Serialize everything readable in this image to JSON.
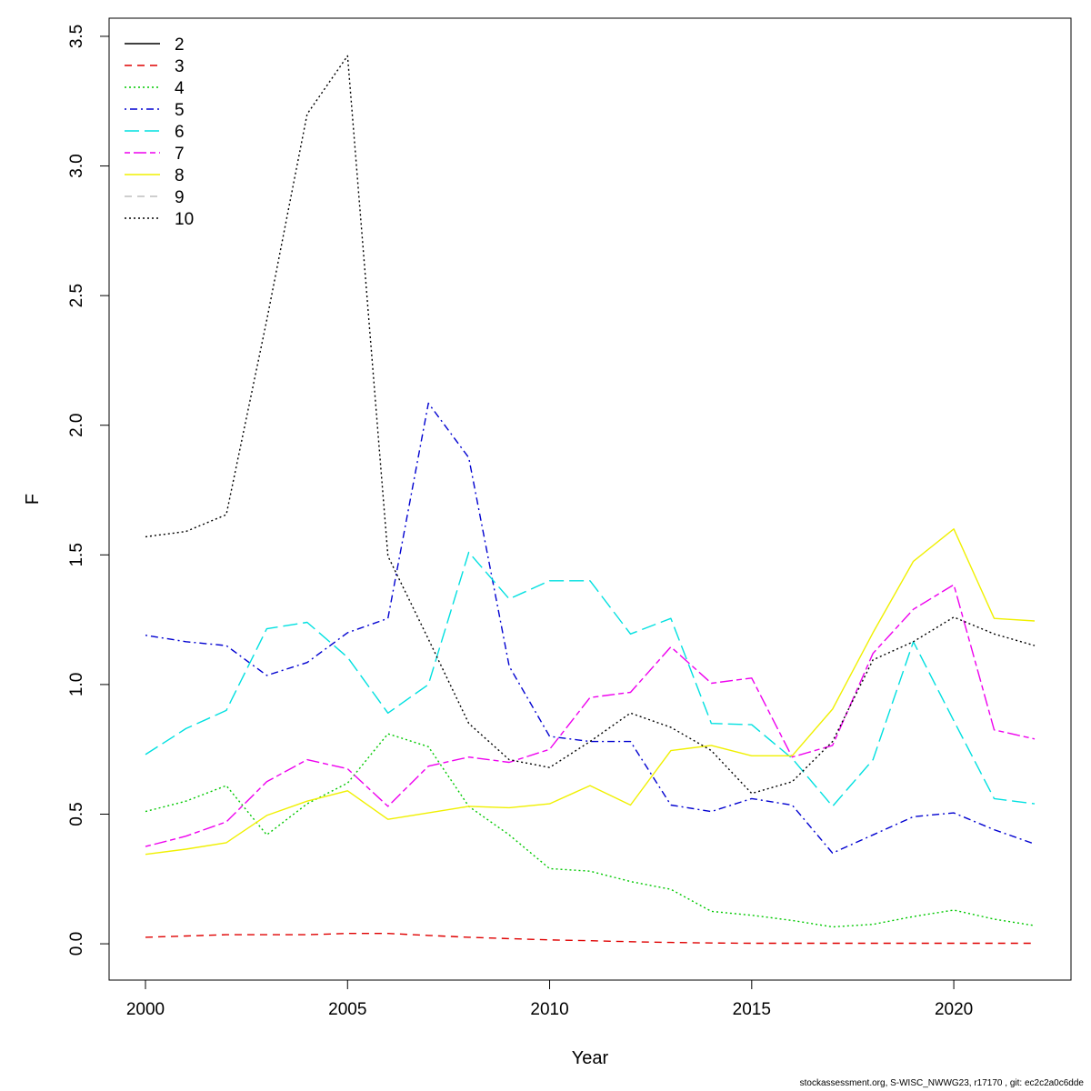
{
  "chart_data": {
    "type": "line",
    "title": "",
    "xlabel": "Year",
    "ylabel": "F",
    "xlim": [
      1999.1,
      2022.9
    ],
    "ylim": [
      -0.14,
      3.57
    ],
    "x_ticks": [
      2000,
      2005,
      2010,
      2015,
      2020
    ],
    "y_ticks": [
      "0.0",
      "0.5",
      "1.0",
      "1.5",
      "2.0",
      "2.5",
      "3.0",
      "3.5"
    ],
    "x": [
      2000,
      2001,
      2002,
      2003,
      2004,
      2005,
      2006,
      2007,
      2008,
      2009,
      2010,
      2011,
      2012,
      2013,
      2014,
      2015,
      2016,
      2017,
      2018,
      2019,
      2020,
      2021,
      2022
    ],
    "legend_position": "top-left",
    "series": [
      {
        "name": "2",
        "color": "#000000",
        "dash": "solid",
        "values": [
          null,
          null,
          null,
          null,
          null,
          null,
          null,
          null,
          null,
          null,
          null,
          null,
          null,
          null,
          null,
          null,
          null,
          null,
          null,
          null,
          null,
          null,
          null
        ]
      },
      {
        "name": "3",
        "color": "#df0000",
        "dash": "dashed",
        "values": [
          0.025,
          0.03,
          0.035,
          0.035,
          0.035,
          0.04,
          0.04,
          0.032,
          0.025,
          0.02,
          0.015,
          0.012,
          0.008,
          0.005,
          0.003,
          0.002,
          0.002,
          0.002,
          0.002,
          0.002,
          0.002,
          0.002,
          0.002
        ]
      },
      {
        "name": "4",
        "color": "#00c800",
        "dash": "dotted",
        "values": [
          0.51,
          0.55,
          0.61,
          0.42,
          0.54,
          0.62,
          0.81,
          0.76,
          0.53,
          0.42,
          0.29,
          0.28,
          0.24,
          0.21,
          0.125,
          0.11,
          0.09,
          0.065,
          0.075,
          0.105,
          0.13,
          0.095,
          0.07
        ]
      },
      {
        "name": "5",
        "color": "#0000d0",
        "dash": "dotdash",
        "values": [
          1.19,
          1.165,
          1.15,
          1.035,
          1.085,
          1.2,
          1.255,
          2.085,
          1.875,
          1.07,
          0.8,
          0.78,
          0.78,
          0.535,
          0.51,
          0.56,
          0.535,
          0.35,
          0.42,
          0.49,
          0.505,
          0.44,
          0.385
        ]
      },
      {
        "name": "6",
        "color": "#00e0e0",
        "dash": "longdash",
        "values": [
          0.73,
          0.83,
          0.9,
          1.215,
          1.24,
          1.105,
          0.89,
          1.0,
          1.51,
          1.33,
          1.4,
          1.4,
          1.195,
          1.255,
          0.85,
          0.845,
          0.715,
          0.53,
          0.71,
          1.165,
          0.86,
          0.56,
          0.54
        ]
      },
      {
        "name": "7",
        "color": "#ee00ee",
        "dash": "twodash",
        "values": [
          0.375,
          0.415,
          0.47,
          0.625,
          0.71,
          0.675,
          0.53,
          0.685,
          0.72,
          0.7,
          0.75,
          0.95,
          0.97,
          1.145,
          1.005,
          1.025,
          0.72,
          0.765,
          1.12,
          1.29,
          1.385,
          0.825,
          0.79
        ]
      },
      {
        "name": "8",
        "color": "#f0f000",
        "dash": "solid",
        "values": [
          0.345,
          0.365,
          0.39,
          0.495,
          0.55,
          0.59,
          0.48,
          0.505,
          0.53,
          0.525,
          0.54,
          0.61,
          0.535,
          0.745,
          0.765,
          0.725,
          0.725,
          0.905,
          1.2,
          1.475,
          1.6,
          1.255,
          1.245
        ]
      },
      {
        "name": "9",
        "color": "#bebebe",
        "dash": "dashed",
        "values": [
          null,
          null,
          null,
          null,
          null,
          null,
          null,
          null,
          null,
          null,
          null,
          null,
          null,
          null,
          null,
          null,
          null,
          null,
          null,
          null,
          null,
          null,
          null
        ]
      },
      {
        "name": "10",
        "color": "#000000",
        "dash": "dotted",
        "values": [
          1.57,
          1.59,
          1.655,
          2.405,
          3.2,
          3.425,
          1.495,
          1.175,
          0.85,
          0.71,
          0.68,
          0.78,
          0.89,
          0.835,
          0.745,
          0.58,
          0.625,
          0.78,
          1.095,
          1.165,
          1.26,
          1.195,
          1.15
        ]
      }
    ]
  },
  "footer": {
    "credit": "stockassessment.org, S-WISC_NWWG23, r17170 , git: ec2c2a0c6dde"
  }
}
